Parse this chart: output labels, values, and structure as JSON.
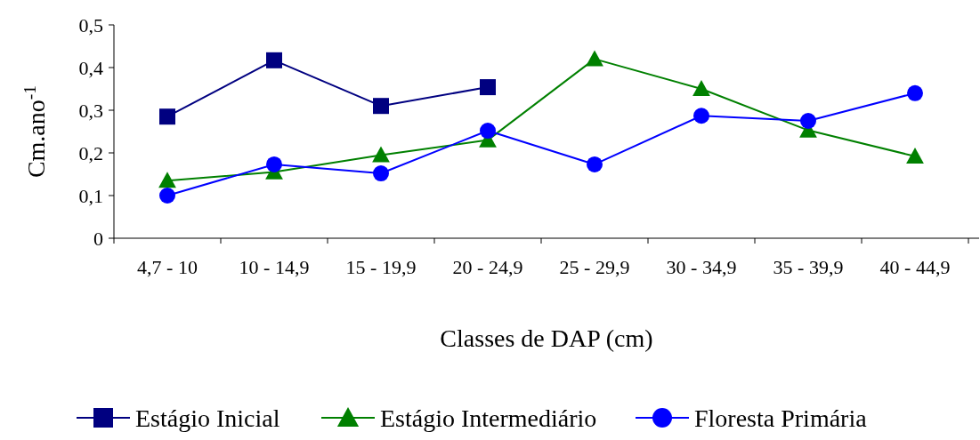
{
  "chart_data": {
    "type": "line",
    "xlabel": "Classes de DAP (cm)",
    "ylabel": "Cm.ano$^{-1}$",
    "categories": [
      "4,7 - 10",
      "10 - 14,9",
      "15 - 19,9",
      "20 - 24,9",
      "25 - 29,9",
      "30 - 34,9",
      "35 - 39,9",
      "40 - 44,9"
    ],
    "ylim": [
      0,
      0.5
    ],
    "yticks": [
      {
        "value": 0,
        "label": "0"
      },
      {
        "value": 0.1,
        "label": "0,1"
      },
      {
        "value": 0.2,
        "label": "0,2"
      },
      {
        "value": 0.3,
        "label": "0,3"
      },
      {
        "value": 0.4,
        "label": "0,4"
      },
      {
        "value": 0.5,
        "label": "0,5"
      }
    ],
    "grid": false,
    "legend": "bottom",
    "line_style": "solid",
    "series": [
      {
        "name": "Estágio Inicial",
        "color": "#000080",
        "marker": "square",
        "values": [
          0.285,
          0.417,
          0.31,
          0.354,
          null,
          null,
          null,
          null
        ]
      },
      {
        "name": "Estágio Intermediário",
        "color": "#008000",
        "marker": "triangle",
        "values": [
          0.135,
          0.155,
          0.195,
          0.23,
          0.42,
          0.35,
          0.253,
          0.192
        ]
      },
      {
        "name": "Floresta Primária",
        "color": "#0000ff",
        "marker": "circle",
        "values": [
          0.1,
          0.173,
          0.152,
          0.252,
          0.173,
          0.287,
          0.275,
          0.34
        ]
      }
    ]
  }
}
